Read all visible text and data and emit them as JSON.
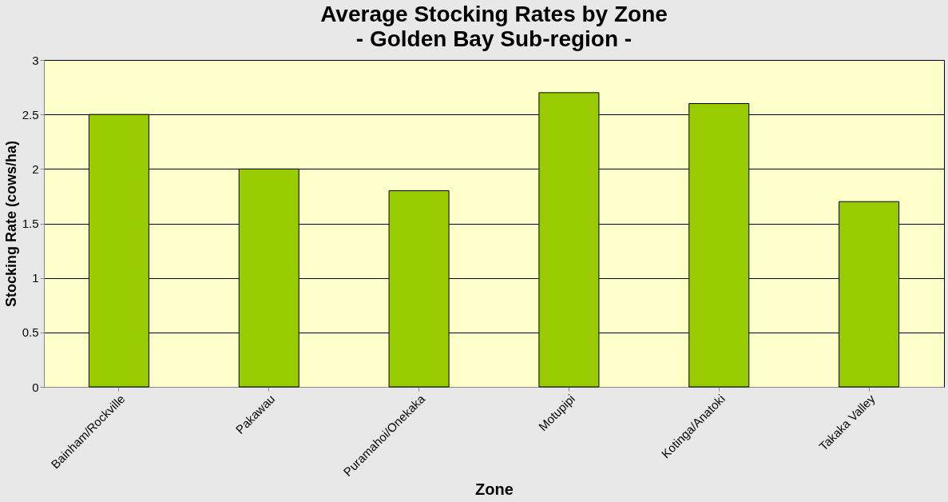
{
  "chart_data": {
    "type": "bar",
    "title": "Average Stocking Rates by Zone",
    "subtitle": "- Golden Bay Sub-region -",
    "xlabel": "Zone",
    "ylabel": "Stocking Rate (cows/ha)",
    "categories": [
      "Bainham/Rockville",
      "Pakawau",
      "Puramahoi/Onekaka",
      "Motupipi",
      "Kotinga/Anatoki",
      "Takaka Valley"
    ],
    "values": [
      2.5,
      2.0,
      1.8,
      2.7,
      2.6,
      1.7
    ],
    "color": "#99cc00",
    "ylim": [
      0,
      3
    ],
    "yticks": [
      0,
      0.5,
      1,
      1.5,
      2,
      2.5,
      3
    ],
    "grid": "y"
  }
}
